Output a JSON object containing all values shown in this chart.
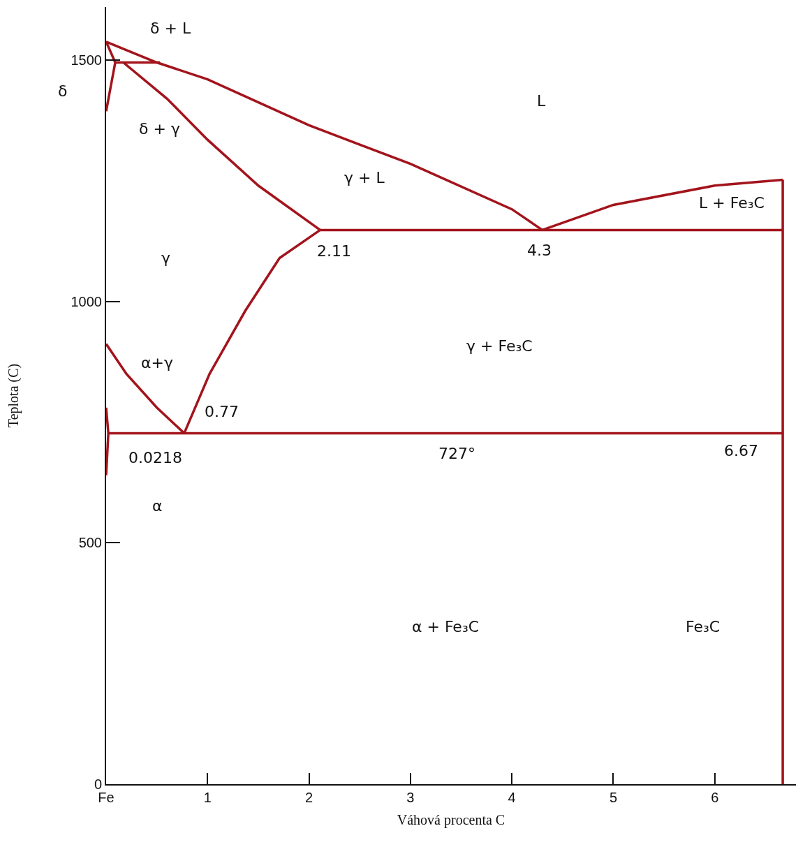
{
  "chart_data": {
    "type": "line",
    "xlabel": "Váhová procenta C",
    "ylabel": "Teplota (C)",
    "xlim": [
      0,
      6.8
    ],
    "ylim": [
      0,
      1610
    ],
    "xticks": [
      {
        "value": 0,
        "label": "Fe"
      },
      1,
      2,
      3,
      4,
      5,
      6
    ],
    "yticks": [
      0,
      500,
      1000,
      1500
    ],
    "marker": "none",
    "line_style": "solid",
    "series": [
      {
        "color": "#a3141c",
        "x": [
          0,
          0.5,
          1,
          2,
          3,
          4,
          4.3
        ],
        "values": [
          1538,
          1495,
          1460,
          1365,
          1285,
          1191,
          1148
        ]
      },
      {
        "color": "#a3141c",
        "x": [
          4.3,
          5,
          6,
          6.67
        ],
        "values": [
          1148,
          1200,
          1240,
          1252
        ]
      },
      {
        "color": "#a3141c",
        "x": [
          2.11,
          6.67
        ],
        "values": [
          1148,
          1148
        ]
      },
      {
        "color": "#a3141c",
        "x": [
          0.0218,
          6.67
        ],
        "values": [
          727,
          727
        ]
      },
      {
        "color": "#a3141c",
        "x": [
          6.67,
          6.67
        ],
        "values": [
          0,
          1252
        ]
      },
      {
        "color": "#a3141c",
        "x": [
          0.17,
          0.6,
          1,
          1.5,
          2.11
        ],
        "values": [
          1495,
          1420,
          1335,
          1240,
          1148
        ]
      },
      {
        "color": "#a3141c",
        "x": [
          0.77,
          1.02,
          1.37,
          1.71,
          2.11
        ],
        "values": [
          727,
          850,
          980,
          1090,
          1148
        ]
      },
      {
        "color": "#a3141c",
        "x": [
          0,
          0.2,
          0.5,
          0.77
        ],
        "values": [
          912,
          850,
          780,
          727
        ]
      },
      {
        "color": "#a3141c",
        "x": [
          0,
          0.0218,
          0
        ],
        "values": [
          780,
          727,
          640
        ]
      },
      {
        "color": "#a3141c",
        "x": [
          0,
          0.09
        ],
        "values": [
          1394,
          1495
        ]
      },
      {
        "color": "#a3141c",
        "x": [
          0.09,
          0.53
        ],
        "values": [
          1495,
          1495
        ]
      },
      {
        "color": "#a3141c",
        "x": [
          0,
          0.09
        ],
        "values": [
          1538,
          1495
        ]
      }
    ],
    "annotations": [
      "δ + L",
      "δ",
      "δ + γ",
      "L",
      "γ + L",
      "L + Fe₃C",
      "γ",
      "2.11",
      "4.3",
      "α+γ",
      "0.77",
      "γ + Fe₃C",
      "0.0218",
      "727°",
      "6.67",
      "α",
      "α + Fe₃C",
      "Fe₃C"
    ]
  }
}
